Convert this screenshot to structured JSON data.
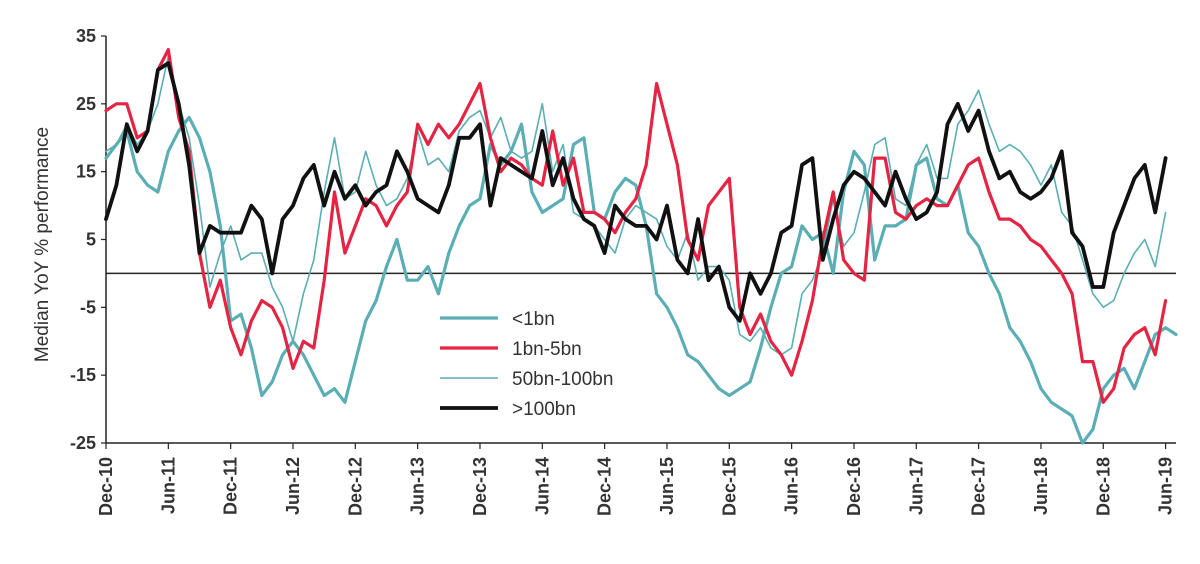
{
  "chart_data": {
    "type": "line",
    "title": "",
    "xlabel": "",
    "ylabel": "Median YoY % performance",
    "ylim": [
      -25,
      35
    ],
    "yticks": [
      35,
      25,
      15,
      5,
      -5,
      -15,
      -25
    ],
    "ytick_labels": [
      "35",
      "25",
      "15",
      "5",
      "-5",
      "-15",
      "-25"
    ],
    "x_tick_labels": [
      "Dec-10",
      "Jun-11",
      "Dec-11",
      "Jun-12",
      "Dec-12",
      "Jun-13",
      "Dec-13",
      "Jun-14",
      "Dec-14",
      "Jun-15",
      "Dec-15",
      "Jun-16",
      "Dec-16",
      "Jun-17",
      "Dec-17",
      "Jun-18",
      "Dec-18",
      "Jun-19"
    ],
    "x_tick_index": [
      0,
      6,
      12,
      18,
      24,
      30,
      36,
      42,
      48,
      54,
      60,
      66,
      72,
      78,
      84,
      90,
      96,
      102
    ],
    "baseline": 0,
    "series": [
      {
        "name": "<1bn",
        "color": "#5aaeb4",
        "width": 3.2,
        "values": [
          17,
          19,
          21,
          15,
          13,
          12,
          18,
          21,
          23,
          20,
          15,
          7,
          -7,
          -6,
          -11,
          -18,
          -16,
          -12,
          -10,
          -12,
          -15,
          -18,
          -17,
          -19,
          -13,
          -7,
          -4,
          1,
          5,
          -1,
          -1,
          1,
          -3,
          3,
          7,
          10,
          11,
          19,
          16,
          18,
          22,
          12,
          9,
          10,
          11,
          19,
          20,
          9,
          8,
          12,
          14,
          13,
          7,
          -3,
          -5,
          -8,
          -12,
          -13,
          -15,
          -17,
          -18,
          -17,
          -16,
          -11,
          -5,
          0,
          1,
          7,
          5,
          6,
          0,
          12,
          18,
          16,
          2,
          7,
          7,
          8,
          16,
          17,
          11,
          10,
          13,
          6,
          4,
          0,
          -3,
          -8,
          -10,
          -13,
          -17,
          -19,
          -20,
          -21,
          -25,
          -23,
          -17,
          -15,
          -14,
          -17,
          -13,
          -9,
          -8,
          -9
        ]
      },
      {
        "name": "1bn-5bn",
        "color": "#e52443",
        "width": 3.2,
        "values": [
          24,
          25,
          25,
          20,
          21,
          30,
          33,
          23,
          18,
          3,
          -5,
          -1,
          -8,
          -12,
          -7,
          -4,
          -5,
          -8,
          -14,
          -10,
          -11,
          -1,
          12,
          3,
          7,
          11,
          10,
          7,
          10,
          12,
          22,
          19,
          22,
          20,
          22,
          25,
          28,
          20,
          15,
          17,
          16,
          14,
          13,
          21,
          13,
          17,
          9,
          9,
          8,
          6,
          9,
          11,
          16,
          28,
          22,
          16,
          5,
          2,
          10,
          12,
          14,
          -5,
          -9,
          -6,
          -10,
          -12,
          -15,
          -10,
          -4,
          5,
          12,
          2,
          0,
          -1,
          17,
          17,
          9,
          8,
          10,
          11,
          10,
          10,
          13,
          16,
          17,
          12,
          8,
          8,
          7,
          5,
          4,
          2,
          0,
          -3,
          -13,
          -13,
          -19,
          -17,
          -11,
          -9,
          -8,
          -12,
          -4
        ]
      },
      {
        "name": "50bn-100bn",
        "color": "#5aaeb4",
        "width": 1.6,
        "values": [
          18,
          19,
          22,
          19,
          21,
          25,
          32,
          25,
          20,
          10,
          -2,
          3,
          7,
          2,
          3,
          3,
          -2,
          -5,
          -10,
          -3,
          2,
          12,
          20,
          11,
          12,
          18,
          13,
          10,
          11,
          14,
          21,
          16,
          17,
          15,
          21,
          23,
          24,
          20,
          23,
          18,
          17,
          18,
          25,
          15,
          19,
          9,
          8,
          7,
          5,
          3,
          8,
          10,
          9,
          8,
          4,
          2,
          6,
          -1,
          1,
          1,
          -1,
          -9,
          -10,
          -8,
          -11,
          -12,
          -11,
          -3,
          -1,
          3,
          11,
          4,
          6,
          12,
          19,
          20,
          11,
          10,
          16,
          19,
          14,
          14,
          22,
          24,
          27,
          22,
          18,
          19,
          18,
          16,
          13,
          16,
          9,
          7,
          2,
          -3,
          -5,
          -4,
          0,
          3,
          5,
          1,
          9
        ]
      },
      {
        "name": ">100bn",
        "color": "#111111",
        "width": 3.8,
        "values": [
          8,
          13,
          22,
          18,
          21,
          30,
          31,
          25,
          16,
          3,
          7,
          6,
          6,
          6,
          10,
          8,
          0,
          8,
          10,
          14,
          16,
          10,
          15,
          11,
          13,
          10,
          12,
          13,
          18,
          15,
          11,
          10,
          9,
          13,
          20,
          20,
          22,
          10,
          17,
          16,
          15,
          14,
          21,
          13,
          17,
          11,
          8,
          7,
          3,
          10,
          8,
          7,
          7,
          5,
          10,
          2,
          0,
          8,
          -1,
          1,
          -5,
          -7,
          0,
          -3,
          0,
          6,
          7,
          16,
          17,
          2,
          8,
          13,
          15,
          14,
          12,
          10,
          15,
          11,
          8,
          9,
          12,
          22,
          25,
          21,
          24,
          18,
          14,
          15,
          12,
          11,
          12,
          14,
          18,
          6,
          4,
          -2,
          -2,
          6,
          10,
          14,
          16,
          9,
          17
        ]
      }
    ],
    "legend": {
      "position": "center",
      "entries": [
        "<1bn",
        "1bn-5bn",
        "50bn-100bn",
        ">100bn"
      ]
    }
  }
}
